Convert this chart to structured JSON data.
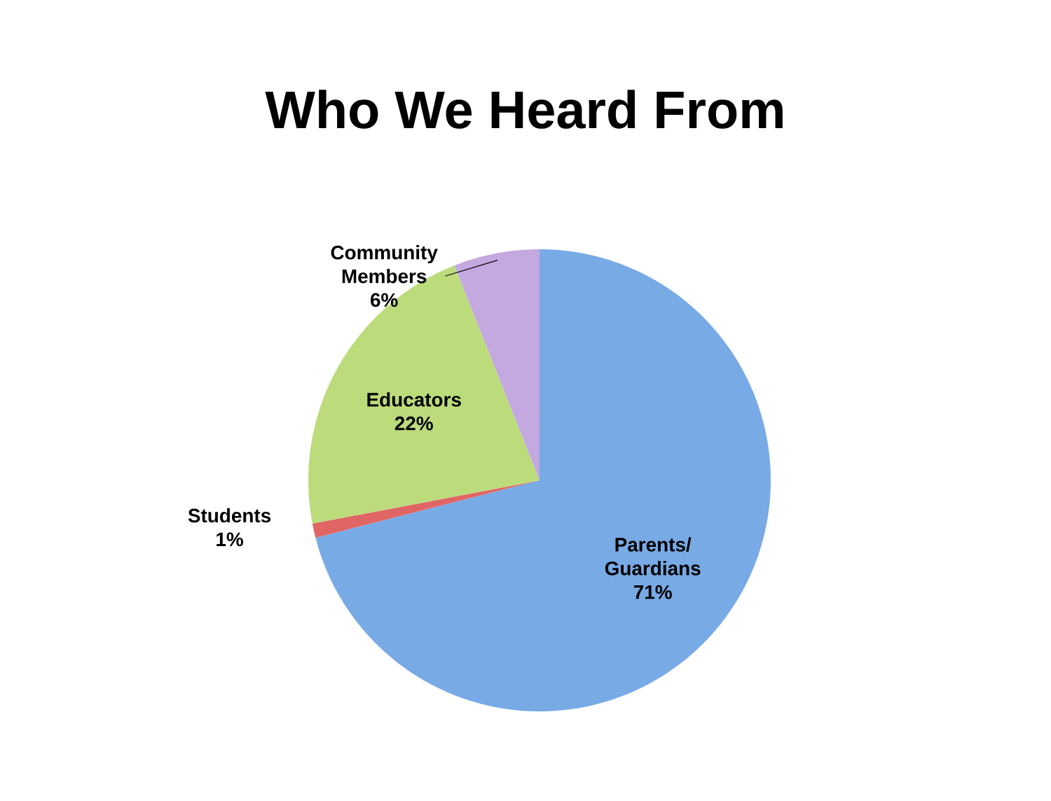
{
  "chart_data": {
    "type": "pie",
    "title": "Who We Heard From",
    "categories": [
      "Parents/ Guardians",
      "Students",
      "Educators",
      "Community Members"
    ],
    "values": [
      71,
      1,
      22,
      6
    ],
    "value_labels": [
      "71%",
      "1%",
      "22%",
      "6%"
    ],
    "colors": [
      "#78aae6",
      "#e06666",
      "#bcdc7c",
      "#c4a8e0"
    ]
  }
}
